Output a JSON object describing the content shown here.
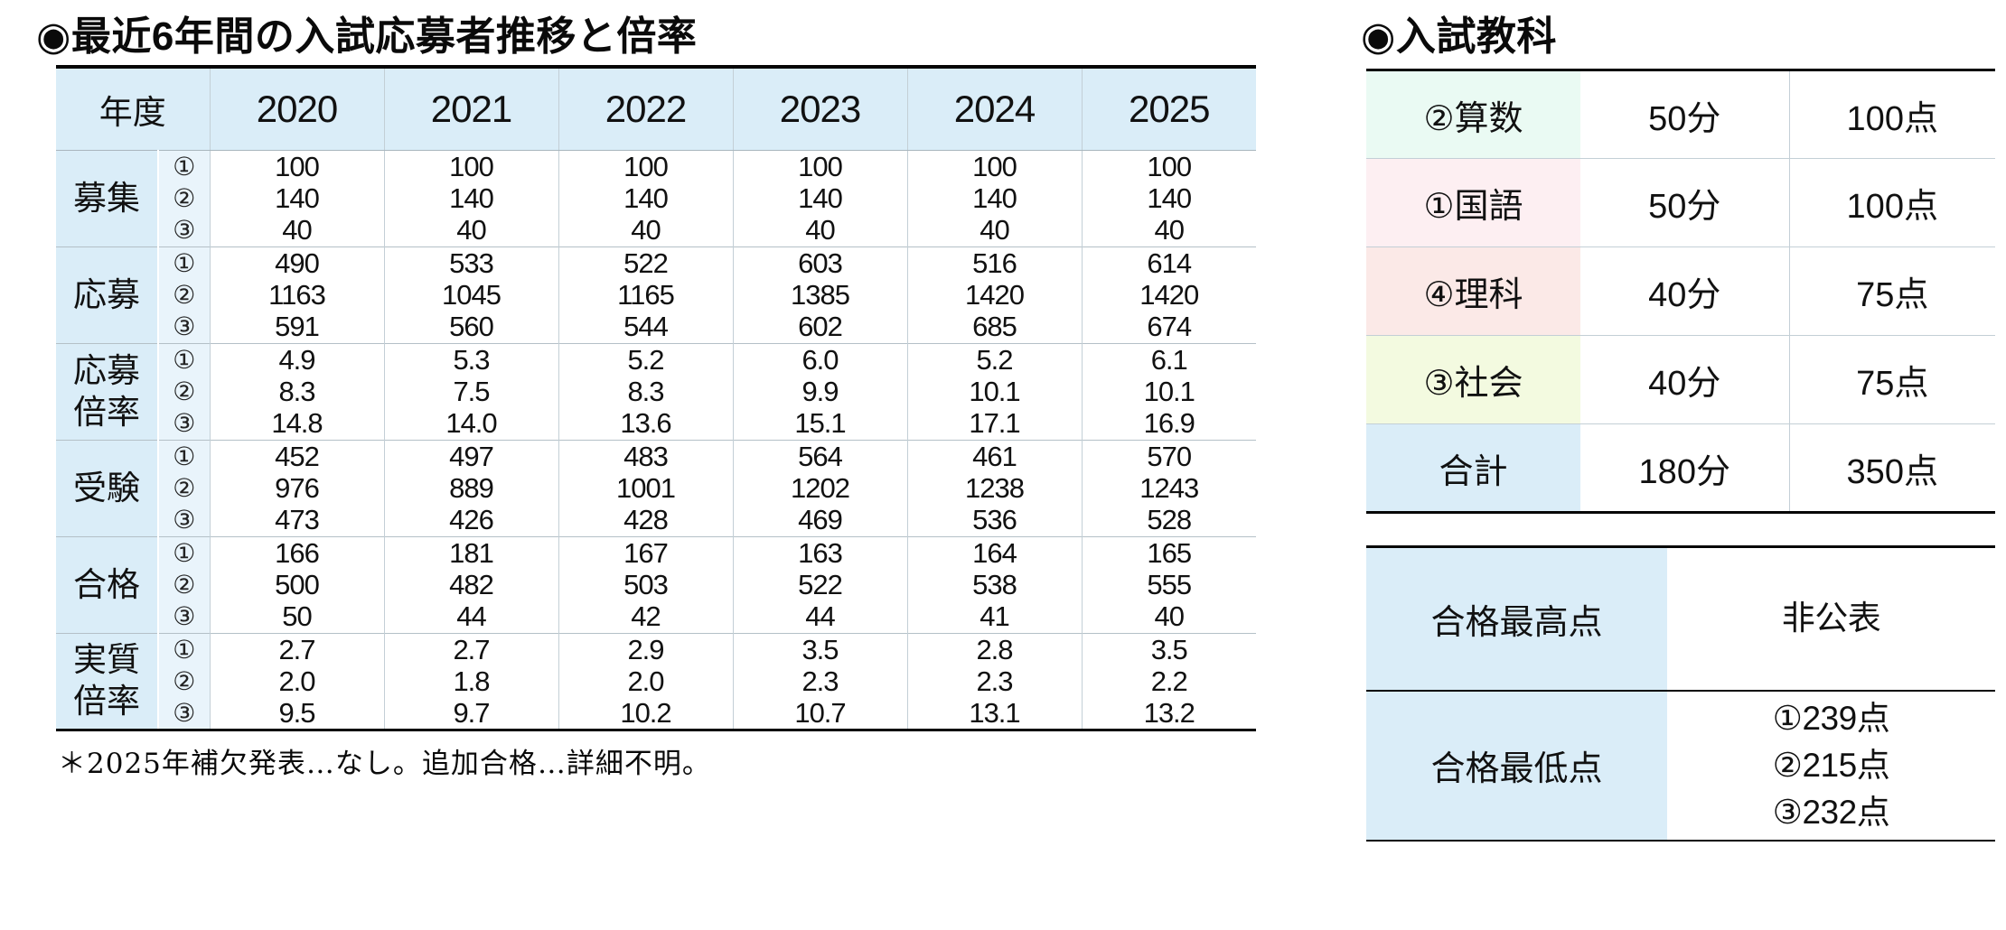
{
  "palette": {
    "header_blue": "#daedf8",
    "sub_col_blue": "#e9f4fb",
    "table_line_black": "#050505"
  },
  "left_panel": {
    "title": "◉最近6年間の入試応募者推移と倍率",
    "table": {
      "year_header": "年度",
      "years": [
        "2020",
        "2021",
        "2022",
        "2023",
        "2024",
        "2025"
      ],
      "sub_labels": [
        "①",
        "②",
        "③"
      ],
      "rows": [
        {
          "label": "募集",
          "values": [
            [
              "100",
              "140",
              "40"
            ],
            [
              "100",
              "140",
              "40"
            ],
            [
              "100",
              "140",
              "40"
            ],
            [
              "100",
              "140",
              "40"
            ],
            [
              "100",
              "140",
              "40"
            ],
            [
              "100",
              "140",
              "40"
            ]
          ]
        },
        {
          "label": "応募",
          "values": [
            [
              "490",
              "1163",
              "591"
            ],
            [
              "533",
              "1045",
              "560"
            ],
            [
              "522",
              "1165",
              "544"
            ],
            [
              "603",
              "1385",
              "602"
            ],
            [
              "516",
              "1420",
              "685"
            ],
            [
              "614",
              "1420",
              "674"
            ]
          ]
        },
        {
          "label": "応募倍率",
          "values": [
            [
              "4.9",
              "8.3",
              "14.8"
            ],
            [
              "5.3",
              "7.5",
              "14.0"
            ],
            [
              "5.2",
              "8.3",
              "13.6"
            ],
            [
              "6.0",
              "9.9",
              "15.1"
            ],
            [
              "5.2",
              "10.1",
              "17.1"
            ],
            [
              "6.1",
              "10.1",
              "16.9"
            ]
          ]
        },
        {
          "label": "受験",
          "values": [
            [
              "452",
              "976",
              "473"
            ],
            [
              "497",
              "889",
              "426"
            ],
            [
              "483",
              "1001",
              "428"
            ],
            [
              "564",
              "1202",
              "469"
            ],
            [
              "461",
              "1238",
              "536"
            ],
            [
              "570",
              "1243",
              "528"
            ]
          ]
        },
        {
          "label": "合格",
          "values": [
            [
              "166",
              "500",
              "50"
            ],
            [
              "181",
              "482",
              "44"
            ],
            [
              "167",
              "503",
              "42"
            ],
            [
              "163",
              "522",
              "44"
            ],
            [
              "164",
              "538",
              "41"
            ],
            [
              "165",
              "555",
              "40"
            ]
          ]
        },
        {
          "label": "実質倍率",
          "values": [
            [
              "2.7",
              "2.0",
              "9.5"
            ],
            [
              "2.7",
              "1.8",
              "9.7"
            ],
            [
              "2.9",
              "2.0",
              "10.2"
            ],
            [
              "3.5",
              "2.3",
              "10.7"
            ],
            [
              "2.8",
              "2.3",
              "13.1"
            ],
            [
              "3.5",
              "2.2",
              "13.2"
            ]
          ]
        }
      ]
    },
    "footnote": "＊2025年補欠発表…なし。追加合格…詳細不明。"
  },
  "right_panel": {
    "title": "◉入試教科",
    "subjects_table": {
      "rows": [
        {
          "name": "②算数",
          "time": "50分",
          "points": "100点",
          "bg": "#eafaf3"
        },
        {
          "name": "①国語",
          "time": "50分",
          "points": "100点",
          "bg": "#fdeff2"
        },
        {
          "name": "④理科",
          "time": "40分",
          "points": "75点",
          "bg": "#fbe9e7"
        },
        {
          "name": "③社会",
          "time": "40分",
          "points": "75点",
          "bg": "#f3fae0"
        },
        {
          "name": "合計",
          "time": "180分",
          "points": "350点",
          "bg": "#daedf8"
        }
      ]
    },
    "scores_table": {
      "rows": [
        {
          "label": "合格最高点",
          "values": [
            "非公表"
          ]
        },
        {
          "label": "合格最低点",
          "values": [
            "①239点",
            "②215点",
            "③232点"
          ]
        }
      ]
    }
  }
}
